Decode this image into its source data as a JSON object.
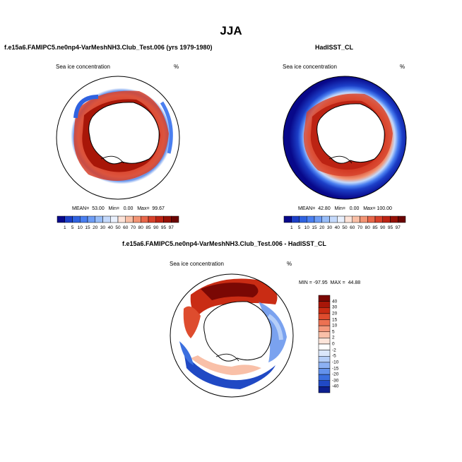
{
  "title": "JJA",
  "panels": [
    {
      "title": "f.e15a6.FAMIPC5.ne0np4-VarMeshNH3.Club_Test.006 (yrs 1979-1980)",
      "variable": "Sea ice concentration",
      "units": "%",
      "stats": "MEAN=  53.00   Min=   0.00   Max=  99.67"
    },
    {
      "title": "HadISST_CL",
      "variable": "Sea ice concentration",
      "units": "%",
      "stats": "MEAN=  42.80   Min=   0.00   Max= 100.00"
    },
    {
      "title": "f.e15a6.FAMIPC5.ne0np4-VarMeshNH3.Club_Test.006 - HadISST_CL",
      "variable": "Sea ice concentration",
      "units": "%",
      "stats": "MIN = -97.95  MAX =  44.88"
    }
  ],
  "colorbar_abs": {
    "labels": [
      "1",
      "5",
      "10",
      "15",
      "20",
      "30",
      "40",
      "50",
      "60",
      "70",
      "80",
      "85",
      "90",
      "95",
      "97"
    ],
    "colors": [
      "#08088a",
      "#1c3fc8",
      "#2f62e0",
      "#4a7ff0",
      "#6e9df5",
      "#98bdf8",
      "#c4d9fb",
      "#e9f0fd",
      "#fde3d8",
      "#f9bfa6",
      "#f29474",
      "#e8674a",
      "#d7412a",
      "#bc2313",
      "#951006",
      "#6a0402"
    ]
  },
  "colorbar_diff": {
    "labels": [
      "40",
      "30",
      "20",
      "15",
      "10",
      "5",
      "2",
      "0",
      "-2",
      "-5",
      "-10",
      "-15",
      "-20",
      "-30",
      "-40"
    ],
    "colors": [
      "#7a0804",
      "#a81608",
      "#c92c14",
      "#de4c2e",
      "#ec7152",
      "#f4987c",
      "#f9c0a8",
      "#fde5da",
      "#ffffff",
      "#dbe7fb",
      "#b5cef8",
      "#8cb1f3",
      "#6392ec",
      "#3b6fdf",
      "#2049c4",
      "#0d1f8e"
    ]
  },
  "chart_data": [
    {
      "type": "heatmap",
      "title": "f.e15a6.FAMIPC5.ne0np4-VarMeshNH3.Club_Test.006 (yrs 1979-1980)",
      "variable": "Sea ice concentration",
      "units": "%",
      "season": "JJA",
      "projection": "south-polar-stereographic",
      "mean": 53.0,
      "min": 0.0,
      "max": 99.67,
      "levels": [
        1,
        5,
        10,
        15,
        20,
        30,
        40,
        50,
        60,
        70,
        80,
        85,
        90,
        95,
        97
      ]
    },
    {
      "type": "heatmap",
      "title": "HadISST_CL",
      "variable": "Sea ice concentration",
      "units": "%",
      "season": "JJA",
      "projection": "south-polar-stereographic",
      "mean": 42.8,
      "min": 0.0,
      "max": 100.0,
      "levels": [
        1,
        5,
        10,
        15,
        20,
        30,
        40,
        50,
        60,
        70,
        80,
        85,
        90,
        95,
        97
      ]
    },
    {
      "type": "heatmap",
      "title": "f.e15a6.FAMIPC5.ne0np4-VarMeshNH3.Club_Test.006 - HadISST_CL",
      "variable": "Sea ice concentration",
      "units": "%",
      "season": "JJA",
      "projection": "south-polar-stereographic",
      "min": -97.95,
      "max": 44.88,
      "levels": [
        -40,
        -30,
        -20,
        -15,
        -10,
        -5,
        -2,
        0,
        2,
        5,
        10,
        15,
        20,
        30,
        40
      ]
    }
  ]
}
